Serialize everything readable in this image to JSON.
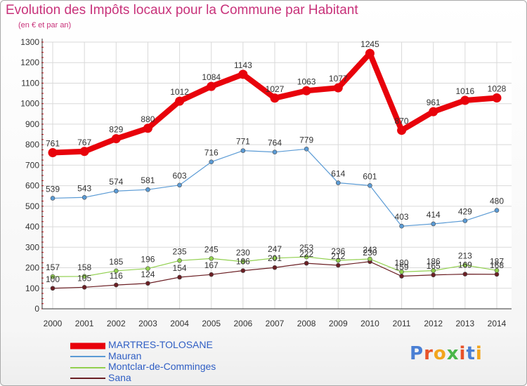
{
  "title": "Evolution des Impôts locaux pour la Commune par Habitant",
  "subtitle": "(en € et par an)",
  "logo": {
    "text": "Proxiti",
    "colors": [
      "#4a7fd4",
      "#e8532a",
      "#f2a51c",
      "#49b649",
      "#e8532a",
      "#4a7fd4",
      "#f2a51c"
    ]
  },
  "chart_data": {
    "type": "line",
    "title": "Evolution des Impôts locaux pour la Commune par Habitant",
    "ylabel": "(en € et par an)",
    "xlabel": "",
    "x": [
      "2000",
      "2001",
      "2002",
      "2003",
      "2004",
      "2005",
      "2006",
      "2007",
      "2008",
      "2009",
      "2010",
      "2011",
      "2012",
      "2013",
      "2014"
    ],
    "ylim": [
      0,
      1300
    ],
    "yticks": [
      0,
      100,
      200,
      300,
      400,
      500,
      600,
      700,
      800,
      900,
      1000,
      1100,
      1200,
      1300
    ],
    "grid": true,
    "legend_position": "bottom-left",
    "series": [
      {
        "name": "MARTRES-TOLOSANE",
        "color": "#e8020b",
        "values": [
          761,
          767,
          829,
          880,
          1012,
          1084,
          1143,
          1027,
          1063,
          1077,
          1245,
          870,
          961,
          1016,
          1028
        ]
      },
      {
        "name": "Mauran",
        "color": "#5b9bd5",
        "values": [
          539,
          543,
          574,
          581,
          603,
          716,
          771,
          764,
          779,
          614,
          601,
          403,
          414,
          429,
          480
        ]
      },
      {
        "name": "Montclar-de-Comminges",
        "color": "#92d050",
        "values": [
          157,
          158,
          185,
          196,
          235,
          245,
          230,
          247,
          253,
          236,
          243,
          180,
          186,
          213,
          187
        ]
      },
      {
        "name": "Sana",
        "color": "#6b1f24",
        "values": [
          100,
          105,
          116,
          124,
          154,
          167,
          186,
          201,
          222,
          212,
          230,
          159,
          165,
          169,
          168
        ]
      }
    ]
  }
}
